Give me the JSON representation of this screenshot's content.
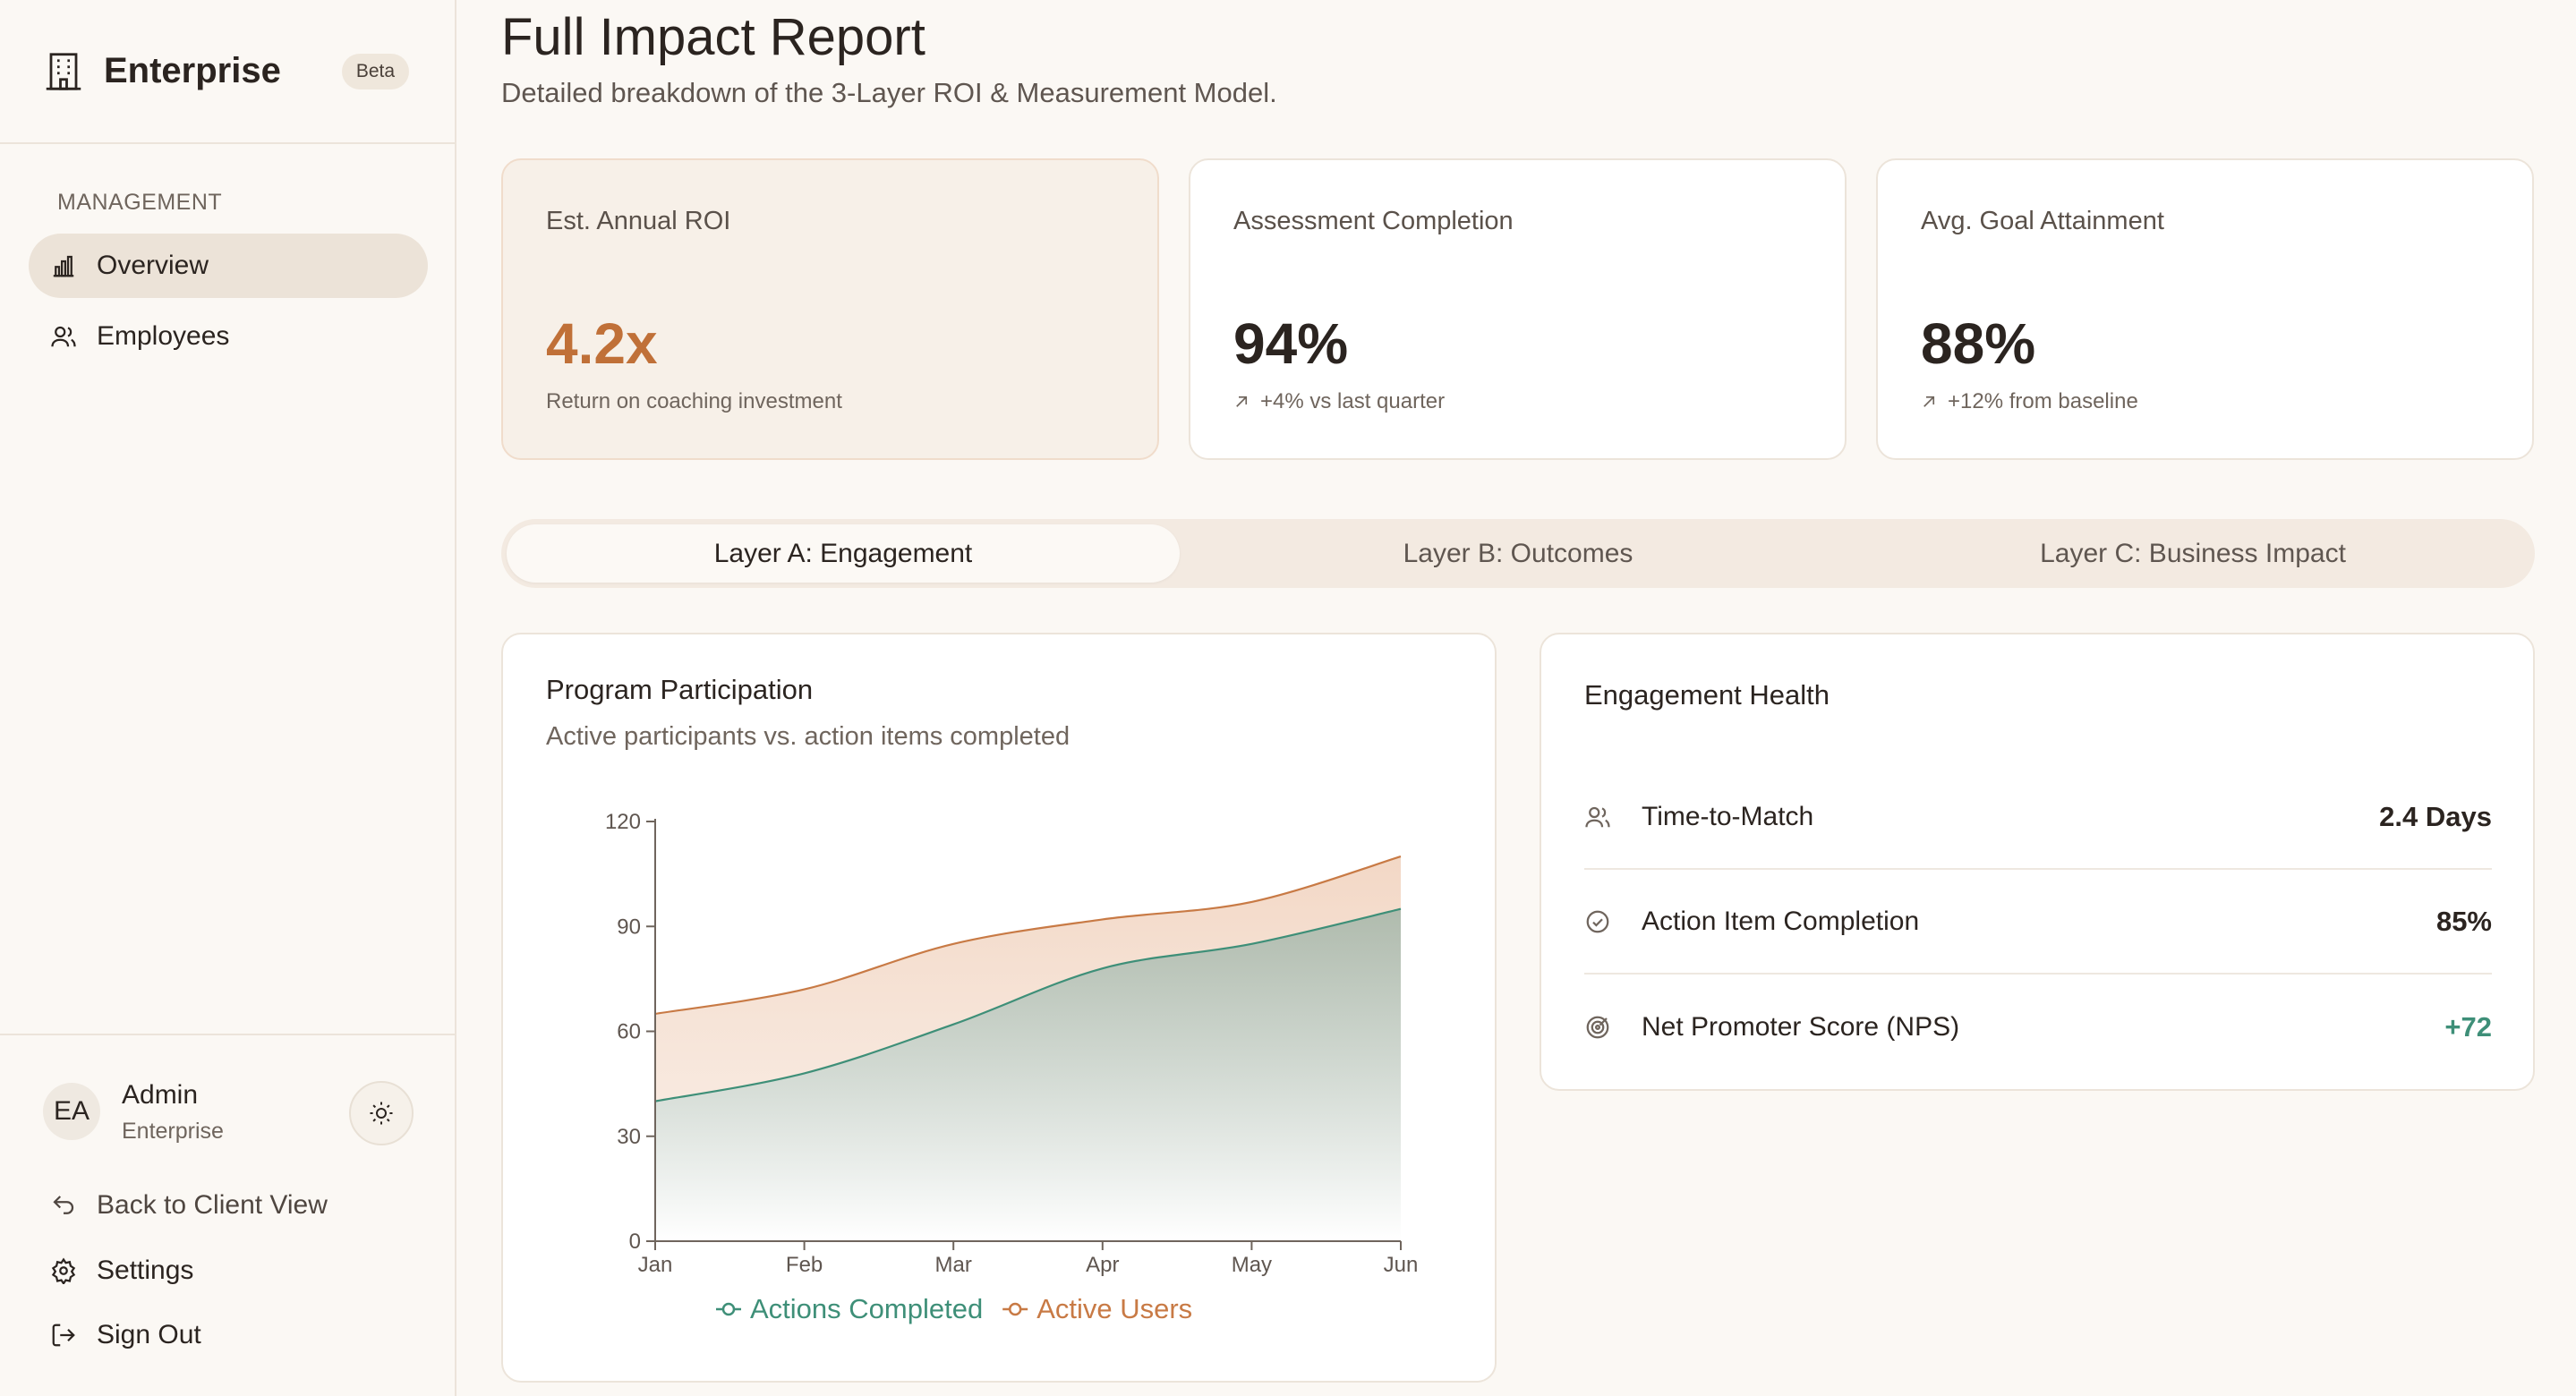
{
  "brand": {
    "name": "Enterprise",
    "badge": "Beta"
  },
  "sidebar": {
    "section_label": "MANAGEMENT",
    "items": [
      {
        "label": "Overview",
        "icon": "bar-chart-icon",
        "active": true
      },
      {
        "label": "Employees",
        "icon": "users-icon",
        "active": false
      }
    ],
    "user": {
      "initials": "EA",
      "name": "Admin",
      "org": "Enterprise"
    },
    "links": [
      {
        "label": "Back to Client View",
        "icon": "undo-arrow-icon"
      },
      {
        "label": "Settings",
        "icon": "gear-icon"
      },
      {
        "label": "Sign Out",
        "icon": "sign-out-icon"
      }
    ]
  },
  "header": {
    "title": "Full Impact Report",
    "subtitle": "Detailed breakdown of the 3-Layer ROI & Measurement Model."
  },
  "kpis": [
    {
      "title": "Est. Annual ROI",
      "value": "4.2x",
      "note": "Return on coaching investment"
    },
    {
      "title": "Assessment Completion",
      "value": "94%",
      "note": "+4% vs last quarter"
    },
    {
      "title": "Avg. Goal Attainment",
      "value": "88%",
      "note": "+12% from baseline"
    }
  ],
  "tabs": [
    {
      "label": "Layer A: Engagement",
      "active": true
    },
    {
      "label": "Layer B: Outcomes",
      "active": false
    },
    {
      "label": "Layer C: Business Impact",
      "active": false
    }
  ],
  "participation": {
    "title": "Program Participation",
    "subtitle": "Active participants vs. action items completed"
  },
  "chart_data": {
    "type": "area",
    "categories": [
      "Jan",
      "Feb",
      "Mar",
      "Apr",
      "May",
      "Jun"
    ],
    "ylim": [
      0,
      120
    ],
    "yticks": [
      0,
      30,
      60,
      90,
      120
    ],
    "series": [
      {
        "name": "Actions Completed",
        "values": [
          40,
          48,
          62,
          78,
          85,
          95
        ],
        "color": "#3E8F78"
      },
      {
        "name": "Active Users",
        "values": [
          65,
          72,
          85,
          92,
          97,
          110
        ],
        "color": "#C87A45"
      }
    ],
    "legend_position": "bottom-center",
    "grid": false
  },
  "health": {
    "title": "Engagement Health",
    "metrics": [
      {
        "label": "Time-to-Match",
        "value": "2.4 Days",
        "icon": "users-icon"
      },
      {
        "label": "Action Item Completion",
        "value": "85%",
        "icon": "check-circle-icon"
      },
      {
        "label": "Net Promoter Score (NPS)",
        "value": "+72",
        "icon": "target-icon"
      }
    ]
  }
}
